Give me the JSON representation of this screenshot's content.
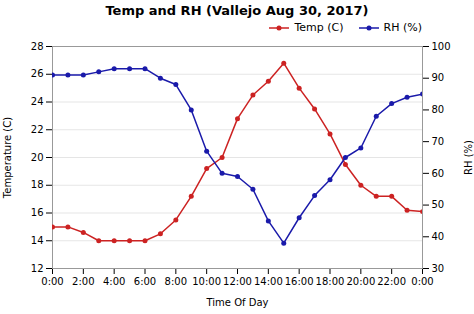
{
  "chart_data": {
    "type": "line",
    "title": "Temp and RH (Vallejo Aug 30, 2017)",
    "xlabel": "Time Of Day",
    "ylabel": "Temperature (C)",
    "y2label": "RH (%)",
    "x": [
      0,
      1,
      2,
      3,
      4,
      5,
      6,
      7,
      8,
      9,
      10,
      11,
      12,
      13,
      14,
      15,
      16,
      17,
      18,
      19,
      20,
      21,
      22,
      23,
      24
    ],
    "xlim": [
      0,
      24
    ],
    "xticks": [
      {
        "value": 0,
        "label": "0:00"
      },
      {
        "value": 2,
        "label": "2:00"
      },
      {
        "value": 4,
        "label": "4:00"
      },
      {
        "value": 6,
        "label": "6:00"
      },
      {
        "value": 8,
        "label": "8:00"
      },
      {
        "value": 10,
        "label": "10:00"
      },
      {
        "value": 12,
        "label": "12:00"
      },
      {
        "value": 14,
        "label": "14:00"
      },
      {
        "value": 16,
        "label": "16:00"
      },
      {
        "value": 18,
        "label": "18:00"
      },
      {
        "value": 20,
        "label": "20:00"
      },
      {
        "value": 22,
        "label": "22:00"
      },
      {
        "value": 24,
        "label": "0:00"
      }
    ],
    "ylim": [
      12,
      28
    ],
    "yticks": [
      12,
      14,
      16,
      18,
      20,
      22,
      24,
      26,
      28
    ],
    "y2lim": [
      30,
      100
    ],
    "y2ticks": [
      30,
      40,
      50,
      60,
      70,
      80,
      90,
      100
    ],
    "grid": true,
    "legend": "upper right",
    "series": [
      {
        "name": "Temp (C)",
        "color": "#cc2222",
        "marker": "circle",
        "values": [
          15.0,
          15.0,
          14.6,
          14.0,
          14.0,
          14.0,
          14.0,
          14.5,
          15.5,
          17.2,
          19.2,
          20.0,
          22.8,
          24.5,
          25.5,
          26.8,
          25.0,
          23.5,
          21.7,
          19.5,
          18.0,
          17.2,
          17.2,
          16.2,
          16.1
        ]
      },
      {
        "name": "RH (%)",
        "color": "#1a1aaa",
        "marker": "circle",
        "axis": "y2",
        "values": [
          91,
          91,
          91,
          92,
          93,
          93,
          93,
          90,
          88,
          80,
          67,
          60,
          59,
          55,
          45,
          38,
          46,
          53,
          58,
          65,
          68,
          78,
          82,
          84,
          85
        ]
      }
    ]
  }
}
